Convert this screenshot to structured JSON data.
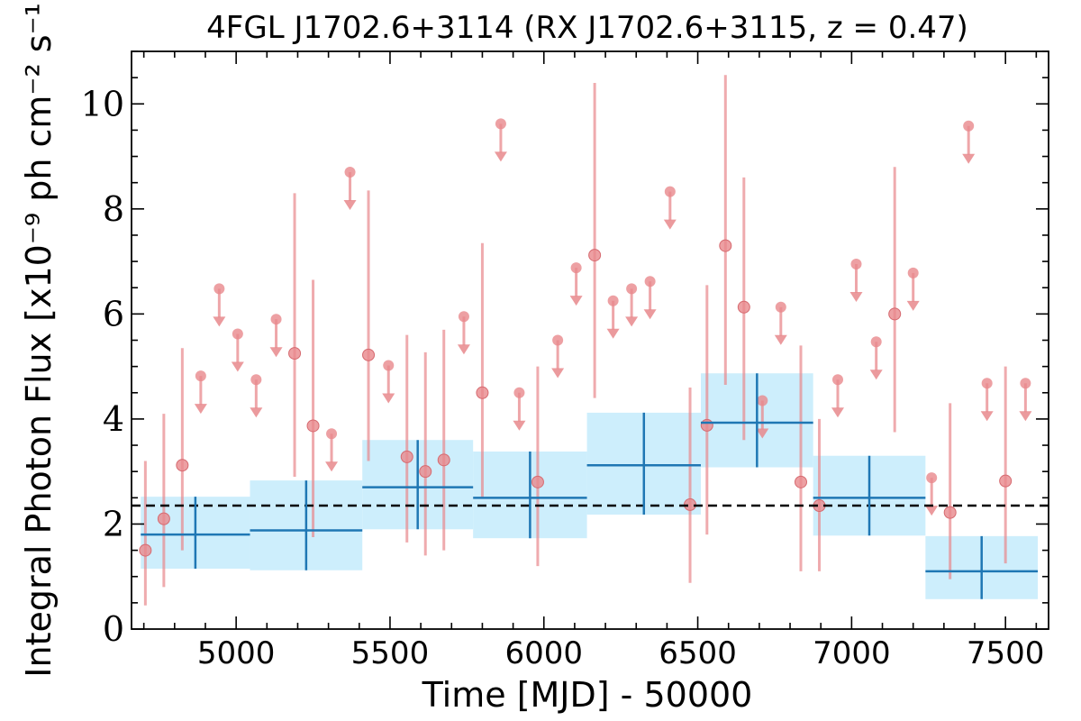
{
  "chart_data": {
    "type": "scatter",
    "title": "4FGL J1702.6+3114 (RX J1702.6+3115, z = 0.47)",
    "xlabel": "Time [MJD] - 50000",
    "ylabel": "Integral Photon Flux [x10⁻⁹ ph cm⁻² s⁻¹]",
    "xlim": [
      4660,
      7640
    ],
    "ylim": [
      0,
      11
    ],
    "xticks": [
      5000,
      5500,
      6000,
      6500,
      7000,
      7500
    ],
    "yticks": [
      0,
      2,
      4,
      6,
      8,
      10
    ],
    "xtick_labels": [
      "5000",
      "5500",
      "6000",
      "6500",
      "7000",
      "7500"
    ],
    "ytick_labels": [
      "0",
      "2",
      "4",
      "6",
      "8",
      "10"
    ],
    "grid": false,
    "colors": {
      "detections": "#e8888c",
      "upper_limits": "#e8888c",
      "binned": "#1f77b4",
      "binned_band": "#cdeefc",
      "mean_line": "#000000"
    },
    "mean_flux": 2.35,
    "series": [
      {
        "kind": "detections",
        "points": [
          {
            "x": 4705,
            "y": 1.5,
            "lo": 0.45,
            "hi": 3.2
          },
          {
            "x": 4765,
            "y": 2.1,
            "lo": 0.8,
            "hi": 4.1
          },
          {
            "x": 4825,
            "y": 3.12,
            "lo": 1.5,
            "hi": 5.35
          },
          {
            "x": 5190,
            "y": 5.25,
            "lo": 2.9,
            "hi": 8.3
          },
          {
            "x": 5250,
            "y": 3.87,
            "lo": 1.75,
            "hi": 6.65
          },
          {
            "x": 5430,
            "y": 5.22,
            "lo": 3.2,
            "hi": 8.35
          },
          {
            "x": 5555,
            "y": 3.28,
            "lo": 1.65,
            "hi": 5.6
          },
          {
            "x": 5615,
            "y": 3.0,
            "lo": 1.4,
            "hi": 5.27
          },
          {
            "x": 5675,
            "y": 3.22,
            "lo": 1.5,
            "hi": 5.7
          },
          {
            "x": 5800,
            "y": 4.5,
            "lo": 2.5,
            "hi": 7.35
          },
          {
            "x": 5980,
            "y": 2.8,
            "lo": 1.2,
            "hi": 5.0
          },
          {
            "x": 6165,
            "y": 7.12,
            "lo": 4.4,
            "hi": 10.4
          },
          {
            "x": 6475,
            "y": 2.37,
            "lo": 0.88,
            "hi": 4.6
          },
          {
            "x": 6530,
            "y": 3.88,
            "lo": 1.8,
            "hi": 6.55
          },
          {
            "x": 6590,
            "y": 7.3,
            "lo": 4.65,
            "hi": 10.55
          },
          {
            "x": 6650,
            "y": 6.13,
            "lo": 3.6,
            "hi": 8.6
          },
          {
            "x": 6835,
            "y": 2.8,
            "lo": 1.1,
            "hi": 5.4
          },
          {
            "x": 6895,
            "y": 2.35,
            "lo": 1.1,
            "hi": 4.0
          },
          {
            "x": 7140,
            "y": 6.0,
            "lo": 3.75,
            "hi": 8.8
          },
          {
            "x": 7320,
            "y": 2.22,
            "lo": 0.95,
            "hi": 4.3
          },
          {
            "x": 7500,
            "y": 2.82,
            "lo": 1.25,
            "hi": 5.0
          }
        ]
      },
      {
        "kind": "upper_limits",
        "points": [
          {
            "x": 4885,
            "y": 4.82
          },
          {
            "x": 4945,
            "y": 6.48
          },
          {
            "x": 5005,
            "y": 5.62
          },
          {
            "x": 5065,
            "y": 4.75
          },
          {
            "x": 5130,
            "y": 5.9
          },
          {
            "x": 5310,
            "y": 3.72
          },
          {
            "x": 5370,
            "y": 8.7
          },
          {
            "x": 5495,
            "y": 5.02
          },
          {
            "x": 5740,
            "y": 5.95
          },
          {
            "x": 5860,
            "y": 9.62
          },
          {
            "x": 5920,
            "y": 4.5
          },
          {
            "x": 6045,
            "y": 5.5
          },
          {
            "x": 6105,
            "y": 6.88
          },
          {
            "x": 6225,
            "y": 6.25
          },
          {
            "x": 6285,
            "y": 6.48
          },
          {
            "x": 6345,
            "y": 6.62
          },
          {
            "x": 6410,
            "y": 8.33
          },
          {
            "x": 6710,
            "y": 4.35
          },
          {
            "x": 6770,
            "y": 6.13
          },
          {
            "x": 6955,
            "y": 4.75
          },
          {
            "x": 7015,
            "y": 6.95
          },
          {
            "x": 7080,
            "y": 5.47
          },
          {
            "x": 7200,
            "y": 6.78
          },
          {
            "x": 7260,
            "y": 2.88
          },
          {
            "x": 7380,
            "y": 9.58
          },
          {
            "x": 7440,
            "y": 4.68
          },
          {
            "x": 7565,
            "y": 4.68
          }
        ]
      },
      {
        "kind": "binned",
        "bins": [
          {
            "x0": 4690,
            "x1": 5045,
            "y": 1.8,
            "ylo": 1.15,
            "yhi": 2.52
          },
          {
            "x0": 5045,
            "x1": 5410,
            "y": 1.88,
            "ylo": 1.12,
            "yhi": 2.83
          },
          {
            "x0": 5410,
            "x1": 5770,
            "y": 2.7,
            "ylo": 1.9,
            "yhi": 3.6
          },
          {
            "x0": 5770,
            "x1": 6140,
            "y": 2.5,
            "ylo": 1.73,
            "yhi": 3.38
          },
          {
            "x0": 6140,
            "x1": 6510,
            "y": 3.12,
            "ylo": 2.18,
            "yhi": 4.12
          },
          {
            "x0": 6510,
            "x1": 6875,
            "y": 3.93,
            "ylo": 3.08,
            "yhi": 4.87
          },
          {
            "x0": 6875,
            "x1": 7240,
            "y": 2.5,
            "ylo": 1.78,
            "yhi": 3.3
          },
          {
            "x0": 7240,
            "x1": 7605,
            "y": 1.1,
            "ylo": 0.57,
            "yhi": 1.77
          }
        ]
      }
    ]
  }
}
